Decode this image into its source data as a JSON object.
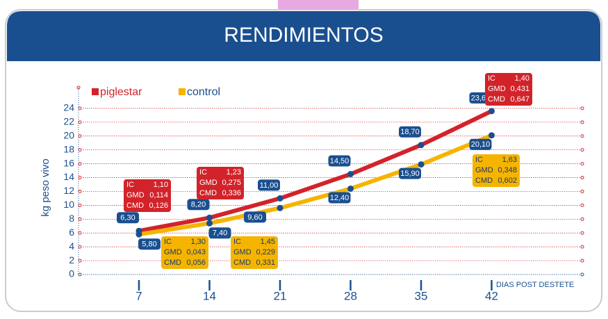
{
  "chart_data": {
    "type": "line",
    "title": "RENDIMIENTOS",
    "y_label": "kg peso vivo",
    "x_label": "DIAS POST DESTETE",
    "x": [
      7,
      14,
      21,
      28,
      35,
      42
    ],
    "xlim": [
      1,
      51
    ],
    "xticks": [
      7,
      14,
      21,
      28,
      35,
      42
    ],
    "ylim": [
      0,
      27
    ],
    "yticks": [
      0,
      2,
      4,
      6,
      8,
      10,
      12,
      14,
      16,
      18,
      20,
      22,
      24
    ],
    "grid": true,
    "series": [
      {
        "name": "piglestar",
        "color": "#d2232a",
        "values": [
          6.3,
          8.2,
          11.0,
          14.5,
          18.7,
          23.6
        ],
        "value_labels": [
          "6,30",
          "8,20",
          "11,00",
          "14,50",
          "18,70",
          "23,60"
        ],
        "annotations": [
          {
            "x": 7,
            "lines": [
              [
                "IC",
                "1,10"
              ],
              [
                "GMD",
                "0,114"
              ],
              [
                "CMD",
                "0,126"
              ]
            ]
          },
          {
            "x": 14,
            "lines": [
              [
                "IC",
                "1,23"
              ],
              [
                "GMD",
                "0,275"
              ],
              [
                "CMD",
                "0,336"
              ]
            ]
          },
          {
            "x": 42,
            "lines": [
              [
                "IC",
                "1,40"
              ],
              [
                "GMD",
                "0,431"
              ],
              [
                "CMD",
                "0,647"
              ]
            ]
          }
        ]
      },
      {
        "name": "control",
        "color": "#f5b400",
        "values": [
          5.8,
          7.4,
          9.6,
          12.4,
          15.9,
          20.1
        ],
        "value_labels": [
          "5,80",
          "7,40",
          "9,60",
          "12,40",
          "15,90",
          "20,10"
        ],
        "annotations": [
          {
            "x": 14,
            "lines": [
              [
                "IC",
                "1,30"
              ],
              [
                "GMD",
                "0,043"
              ],
              [
                "CMD",
                "0,056"
              ]
            ]
          },
          {
            "x": 21,
            "lines": [
              [
                "IC",
                "1,45"
              ],
              [
                "GMD",
                "0,229"
              ],
              [
                "CMD",
                "0,331"
              ]
            ]
          },
          {
            "x": 42,
            "lines": [
              [
                "IC",
                "1,63"
              ],
              [
                "GMD",
                "0,348"
              ],
              [
                "CMD",
                "0,602"
              ]
            ]
          }
        ]
      }
    ]
  }
}
